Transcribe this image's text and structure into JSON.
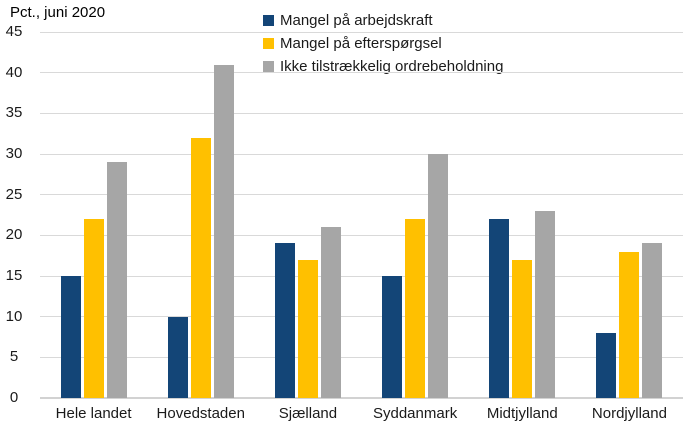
{
  "chart_data": {
    "type": "bar",
    "title": "Pct., juni 2020",
    "categories": [
      "Hele landet",
      "Hovedstaden",
      "Sjælland",
      "Syddanmark",
      "Midtjylland",
      "Nordjylland"
    ],
    "series": [
      {
        "name": "Mangel på arbejdskraft",
        "color": "#134577",
        "values": [
          15,
          10,
          19,
          15,
          22,
          8
        ]
      },
      {
        "name": "Mangel på efterspørgsel",
        "color": "#FFC000",
        "values": [
          22,
          32,
          17,
          22,
          17,
          18
        ]
      },
      {
        "name": "Ikke tilstrækkelig ordrebeholdning",
        "color": "#A6A6A6",
        "values": [
          29,
          41,
          21,
          30,
          23,
          19
        ]
      }
    ],
    "ylim": [
      0,
      45
    ],
    "yticks": [
      0,
      5,
      10,
      15,
      20,
      25,
      30,
      35,
      40,
      45
    ],
    "grid": true,
    "gridline_color": "#D9D9D9",
    "axis_line_color": "#D2D2D2",
    "legend_position": "top",
    "xlabel": "",
    "ylabel": ""
  }
}
